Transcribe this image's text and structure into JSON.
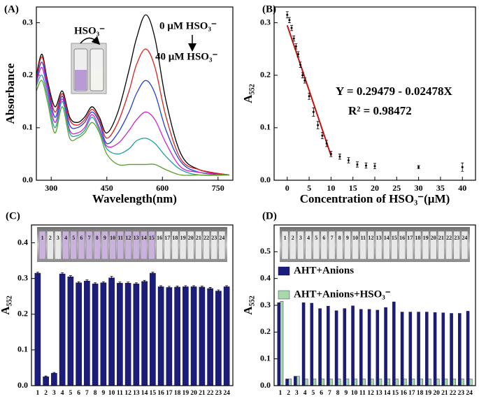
{
  "chart_data": [
    {
      "type": "line",
      "title": "(A)",
      "xlabel": "Wavelength(nm)",
      "ylabel": "Absorbance",
      "xlim": [
        260,
        790
      ],
      "xticks": [
        300,
        450,
        600,
        750
      ],
      "ylim": [
        0,
        0.33
      ],
      "yticks": [
        {
          "value": 0,
          "label": "0.0"
        },
        0.1,
        0.2,
        0.3
      ],
      "annotations": [
        "HSO₃⁻",
        "0 µM HSO₃⁻",
        "40 µM HSO₃⁻"
      ],
      "x": [
        260,
        275,
        290,
        310,
        330,
        350,
        370,
        390,
        410,
        430,
        450,
        480,
        510,
        530,
        555,
        580,
        610,
        650,
        700,
        780
      ],
      "series": [
        {
          "color": "#000000",
          "values": [
            0.2,
            0.24,
            0.19,
            0.14,
            0.17,
            0.12,
            0.11,
            0.12,
            0.14,
            0.12,
            0.09,
            0.13,
            0.21,
            0.27,
            0.315,
            0.27,
            0.15,
            0.05,
            0.02,
            0.01
          ]
        },
        {
          "color": "#e0201c",
          "values": [
            0.195,
            0.235,
            0.185,
            0.13,
            0.165,
            0.115,
            0.105,
            0.115,
            0.135,
            0.115,
            0.08,
            0.11,
            0.17,
            0.22,
            0.25,
            0.215,
            0.12,
            0.04,
            0.02,
            0.01
          ]
        },
        {
          "color": "#2040e0",
          "values": [
            0.19,
            0.225,
            0.18,
            0.12,
            0.16,
            0.105,
            0.1,
            0.11,
            0.13,
            0.11,
            0.07,
            0.09,
            0.13,
            0.165,
            0.19,
            0.165,
            0.095,
            0.035,
            0.015,
            0.01
          ]
        },
        {
          "color": "#d020d0",
          "values": [
            0.185,
            0.215,
            0.17,
            0.11,
            0.155,
            0.095,
            0.09,
            0.1,
            0.125,
            0.1,
            0.065,
            0.07,
            0.095,
            0.115,
            0.13,
            0.115,
            0.07,
            0.025,
            0.015,
            0.01
          ]
        },
        {
          "color": "#20a0a0",
          "values": [
            0.18,
            0.2,
            0.16,
            0.1,
            0.15,
            0.09,
            0.085,
            0.095,
            0.12,
            0.095,
            0.06,
            0.05,
            0.06,
            0.075,
            0.08,
            0.07,
            0.045,
            0.02,
            0.01,
            0.01
          ]
        },
        {
          "color": "#5aa02c",
          "values": [
            0.17,
            0.19,
            0.15,
            0.09,
            0.14,
            0.08,
            0.08,
            0.09,
            0.11,
            0.09,
            0.05,
            0.03,
            0.03,
            0.03,
            0.03,
            0.03,
            0.02,
            0.01,
            0.01,
            0.01
          ]
        }
      ]
    },
    {
      "type": "scatter",
      "title": "(B)",
      "xlabel": "Concentration of HSO₃⁻(µM)",
      "ylabel": "A₅₅₂",
      "xlim": [
        -3,
        43
      ],
      "xticks": [
        0,
        5,
        10,
        15,
        20,
        25,
        30,
        35,
        40
      ],
      "ylim": [
        0,
        0.33
      ],
      "yticks": [
        {
          "value": 0,
          "label": "0.0"
        },
        0.1,
        0.2,
        0.3
      ],
      "annotations": [
        "Y = 0.29479 - 0.02478X",
        "R² = 0.98472"
      ],
      "points": {
        "color": "#000000",
        "x": [
          0,
          0.5,
          1,
          1.5,
          2,
          2.5,
          3,
          3.5,
          4,
          5,
          6,
          7,
          8,
          9,
          10,
          12,
          14,
          16,
          18,
          20,
          30,
          40
        ],
        "values": [
          0.315,
          0.305,
          0.29,
          0.27,
          0.255,
          0.24,
          0.22,
          0.2,
          0.19,
          0.16,
          0.13,
          0.105,
          0.085,
          0.07,
          0.05,
          0.045,
          0.038,
          0.03,
          0.028,
          0.027,
          0.025,
          0.025
        ],
        "errors": [
          0.006,
          0.005,
          0.005,
          0.005,
          0.005,
          0.005,
          0.005,
          0.005,
          0.005,
          0.006,
          0.008,
          0.007,
          0.006,
          0.006,
          0.005,
          0.005,
          0.005,
          0.005,
          0.005,
          0.005,
          0.003,
          0.008
        ]
      },
      "fit": {
        "color": "#cc1010",
        "x": [
          0,
          10
        ],
        "values": [
          0.295,
          0.047
        ]
      }
    },
    {
      "type": "bar",
      "title": "(C)",
      "ylabel": "A₅₅₂",
      "ylim": [
        0,
        0.45
      ],
      "yticks": [
        {
          "value": 0,
          "label": "0.0"
        },
        0.1,
        0.2,
        0.3,
        0.4
      ],
      "categories": [
        "1",
        "2",
        "3",
        "4",
        "5",
        "6",
        "7",
        "8",
        "9",
        "10",
        "11",
        "12",
        "13",
        "14",
        "15",
        "16",
        "17",
        "18",
        "19",
        "20",
        "21",
        "22",
        "23",
        "24"
      ],
      "color": "#1c1c7a",
      "values": [
        0.315,
        0.025,
        0.035,
        0.313,
        0.305,
        0.288,
        0.293,
        0.285,
        0.288,
        0.302,
        0.287,
        0.287,
        0.285,
        0.292,
        0.315,
        0.277,
        0.275,
        0.276,
        0.277,
        0.277,
        0.276,
        0.272,
        0.265,
        0.277
      ],
      "errors": [
        0.003,
        0.002,
        0.002,
        0.003,
        0.003,
        0.003,
        0.003,
        0.003,
        0.003,
        0.004,
        0.003,
        0.003,
        0.003,
        0.003,
        0.003,
        0.003,
        0.003,
        0.003,
        0.003,
        0.003,
        0.003,
        0.003,
        0.003,
        0.003
      ]
    },
    {
      "type": "bar",
      "title": "(D)",
      "ylabel": "A₅₅₂",
      "legend": "upper left",
      "ylim": [
        0,
        0.6
      ],
      "yticks": [
        {
          "value": 0,
          "label": "0.0"
        },
        0.1,
        0.2,
        0.3,
        0.4,
        0.5
      ],
      "categories": [
        "1",
        "2",
        "3",
        "4",
        "5",
        "6",
        "7",
        "8",
        "9",
        "10",
        "11",
        "12",
        "13",
        "14",
        "15",
        "16",
        "17",
        "18",
        "19",
        "20",
        "21",
        "22",
        "23",
        "24"
      ],
      "series": [
        {
          "name": "AHT+Anions",
          "color": "#1c1c7a",
          "values": [
            0.31,
            0.025,
            0.035,
            0.31,
            0.308,
            0.288,
            0.297,
            0.28,
            0.288,
            0.298,
            0.285,
            0.285,
            0.282,
            0.292,
            0.313,
            0.275,
            0.275,
            0.275,
            0.275,
            0.273,
            0.272,
            0.27,
            0.27,
            0.278
          ]
        },
        {
          "name": "AHT+Anions+HSO₃⁻",
          "color": "#a8d8a8",
          "values": [
            0.315,
            0.025,
            0.035,
            0.025,
            0.025,
            0.025,
            0.025,
            0.025,
            0.025,
            0.025,
            0.025,
            0.025,
            0.025,
            0.025,
            0.025,
            0.025,
            0.025,
            0.025,
            0.025,
            0.025,
            0.025,
            0.025,
            0.025,
            0.025
          ]
        }
      ]
    }
  ]
}
